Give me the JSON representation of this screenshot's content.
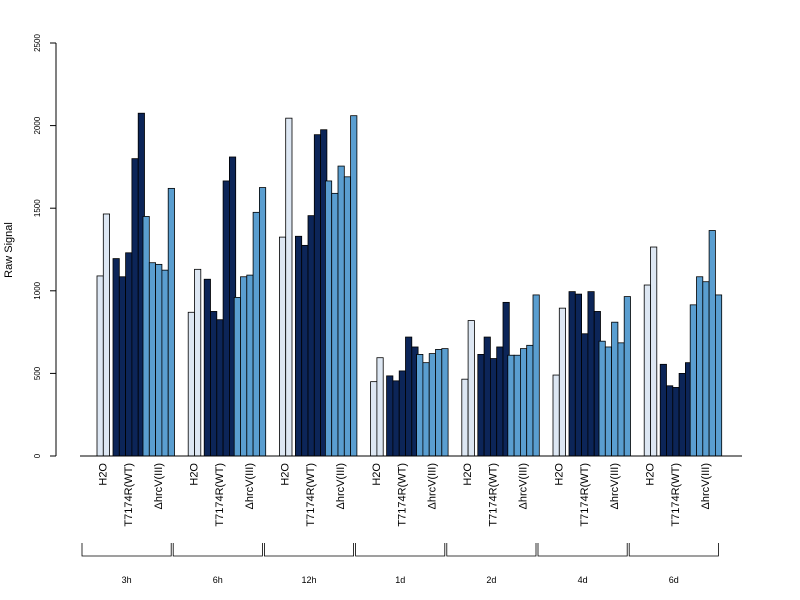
{
  "chart_data": {
    "type": "bar",
    "ylabel": "Raw Signal",
    "ylim": [
      0,
      2500
    ],
    "yticks": [
      0,
      500,
      1000,
      1500,
      2000,
      2500
    ],
    "grid": false,
    "treatments": [
      "H2O",
      "T7174R(WT)",
      "ΔhrcV(III)"
    ],
    "timepoints": [
      "3h",
      "6h",
      "12h",
      "1d",
      "2d",
      "4d",
      "6d"
    ],
    "colors": {
      "H2O": "#dde7f3",
      "T7174R(WT)": "#0c2558",
      "ΔhrcV(III)": "#5a9ed0"
    },
    "series": [
      {
        "timepoint": "3h",
        "treatment": "H2O",
        "values": [
          1090,
          1465
        ]
      },
      {
        "timepoint": "3h",
        "treatment": "T7174R(WT)",
        "values": [
          1195,
          1085,
          1230,
          1800,
          2075
        ]
      },
      {
        "timepoint": "3h",
        "treatment": "ΔhrcV(III)",
        "values": [
          1450,
          1170,
          1160,
          1125,
          1620
        ]
      },
      {
        "timepoint": "6h",
        "treatment": "H2O",
        "values": [
          870,
          1130
        ]
      },
      {
        "timepoint": "6h",
        "treatment": "T7174R(WT)",
        "values": [
          1070,
          875,
          825,
          1665,
          1810
        ]
      },
      {
        "timepoint": "6h",
        "treatment": "ΔhrcV(III)",
        "values": [
          960,
          1085,
          1095,
          1475,
          1625
        ]
      },
      {
        "timepoint": "12h",
        "treatment": "H2O",
        "values": [
          1325,
          2045
        ]
      },
      {
        "timepoint": "12h",
        "treatment": "T7174R(WT)",
        "values": [
          1330,
          1275,
          1455,
          1945,
          1975
        ]
      },
      {
        "timepoint": "12h",
        "treatment": "ΔhrcV(III)",
        "values": [
          1665,
          1590,
          1755,
          1690,
          2060
        ]
      },
      {
        "timepoint": "1d",
        "treatment": "H2O",
        "values": [
          450,
          595
        ]
      },
      {
        "timepoint": "1d",
        "treatment": "T7174R(WT)",
        "values": [
          485,
          455,
          515,
          720,
          660
        ]
      },
      {
        "timepoint": "1d",
        "treatment": "ΔhrcV(III)",
        "values": [
          615,
          565,
          620,
          645,
          650
        ]
      },
      {
        "timepoint": "2d",
        "treatment": "H2O",
        "values": [
          465,
          820
        ]
      },
      {
        "timepoint": "2d",
        "treatment": "T7174R(WT)",
        "values": [
          615,
          720,
          590,
          660,
          930
        ]
      },
      {
        "timepoint": "2d",
        "treatment": "ΔhrcV(III)",
        "values": [
          610,
          610,
          650,
          670,
          975
        ]
      },
      {
        "timepoint": "4d",
        "treatment": "H2O",
        "values": [
          490,
          895
        ]
      },
      {
        "timepoint": "4d",
        "treatment": "T7174R(WT)",
        "values": [
          995,
          980,
          740,
          995,
          875
        ]
      },
      {
        "timepoint": "4d",
        "treatment": "ΔhrcV(III)",
        "values": [
          695,
          660,
          810,
          685,
          965
        ]
      },
      {
        "timepoint": "6d",
        "treatment": "H2O",
        "values": [
          1035,
          1265
        ]
      },
      {
        "timepoint": "6d",
        "treatment": "T7174R(WT)",
        "values": [
          555,
          425,
          415,
          500,
          565
        ]
      },
      {
        "timepoint": "6d",
        "treatment": "ΔhrcV(III)",
        "values": [
          915,
          1085,
          1055,
          1365,
          975
        ]
      }
    ]
  }
}
